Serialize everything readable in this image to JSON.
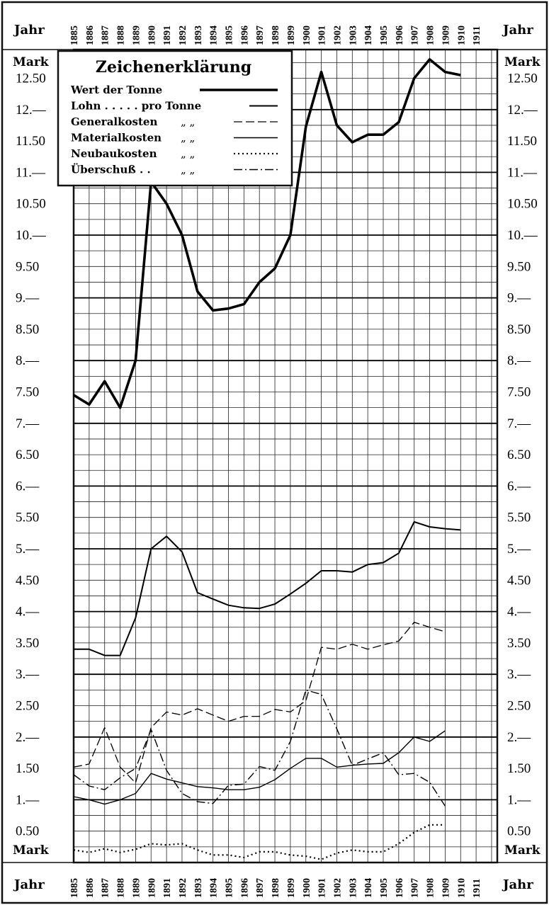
{
  "chart_data": {
    "type": "line",
    "title": "",
    "legend": {
      "title": "Zeichenerklärung",
      "placement": "top-left",
      "entries": [
        {
          "label": "Wert der Tonne",
          "unit": ""
        },
        {
          "label": "Lohn . . . . . pro Tonne",
          "unit": ""
        },
        {
          "label": "Generalkosten",
          "unit": "„     „"
        },
        {
          "label": "Materialkosten",
          "unit": "„     „"
        },
        {
          "label": "Neubaukosten",
          "unit": "„     „"
        },
        {
          "label": "Überschuß . .",
          "unit": "„     „"
        }
      ]
    },
    "x_label": "Jahr",
    "y_label": "Mark",
    "x": [
      1885,
      1886,
      1887,
      1888,
      1889,
      1890,
      1891,
      1892,
      1893,
      1894,
      1895,
      1896,
      1897,
      1898,
      1899,
      1900,
      1901,
      1902,
      1903,
      1904,
      1905,
      1906,
      1907,
      1908,
      1909,
      1910,
      1911
    ],
    "ylim": [
      0,
      13
    ],
    "y_ticks": [
      "0.50",
      "1.—",
      "1.50",
      "2.—",
      "2.50",
      "3.—",
      "3.50",
      "4.—",
      "4.50",
      "5.—",
      "5.50",
      "6.—",
      "6.50",
      "7.—",
      "7.50",
      "8.—",
      "8.50",
      "9.—",
      "9.50",
      "10.—",
      "10.50",
      "11.—",
      "11.50",
      "12.—",
      "12.50"
    ],
    "grid": true,
    "series": [
      {
        "name": "Wert der Tonne",
        "style": "thick-solid",
        "values": [
          7.45,
          7.3,
          7.67,
          7.25,
          8.0,
          10.85,
          10.5,
          10.0,
          9.1,
          8.8,
          8.83,
          8.9,
          9.25,
          9.47,
          10.0,
          11.73,
          12.6,
          11.75,
          11.48,
          11.6,
          11.6,
          11.8,
          12.5,
          12.8,
          12.6,
          12.55,
          null
        ]
      },
      {
        "name": "Lohn",
        "style": "solid",
        "values": [
          3.4,
          3.4,
          3.3,
          3.3,
          3.9,
          5.0,
          5.2,
          4.95,
          4.3,
          4.2,
          4.1,
          4.06,
          4.05,
          4.12,
          4.28,
          4.45,
          4.65,
          4.65,
          4.63,
          4.75,
          4.78,
          4.93,
          5.43,
          5.35,
          5.32,
          5.3,
          null
        ]
      },
      {
        "name": "Generalkosten",
        "style": "dashed",
        "values": [
          1.52,
          1.57,
          2.15,
          1.52,
          1.27,
          2.15,
          2.4,
          2.35,
          2.45,
          2.35,
          2.25,
          2.33,
          2.33,
          2.44,
          2.4,
          2.58,
          3.43,
          3.4,
          3.48,
          3.4,
          3.47,
          3.53,
          3.83,
          3.75,
          3.68,
          null,
          null
        ]
      },
      {
        "name": "Materialkosten",
        "style": "thin-solid",
        "values": [
          1.05,
          1.0,
          0.93,
          1.0,
          1.1,
          1.42,
          1.33,
          1.27,
          1.21,
          1.19,
          1.16,
          1.16,
          1.2,
          1.32,
          1.5,
          1.66,
          1.66,
          1.52,
          1.55,
          1.57,
          1.58,
          1.75,
          2.0,
          1.93,
          2.1,
          null,
          null
        ]
      },
      {
        "name": "Neubaukosten",
        "style": "dotted",
        "values": [
          0.2,
          0.16,
          0.22,
          0.16,
          0.21,
          0.3,
          0.28,
          0.3,
          0.2,
          0.12,
          0.12,
          0.08,
          0.17,
          0.17,
          0.12,
          0.1,
          0.05,
          0.15,
          0.2,
          0.17,
          0.17,
          0.3,
          0.48,
          0.6,
          0.6,
          null,
          null
        ]
      },
      {
        "name": "Überschuß",
        "style": "dash-dot",
        "values": [
          1.4,
          1.22,
          1.16,
          1.35,
          1.5,
          2.12,
          1.47,
          1.1,
          0.97,
          0.94,
          1.23,
          1.25,
          1.53,
          1.47,
          1.93,
          2.75,
          2.68,
          2.13,
          1.55,
          1.65,
          1.75,
          1.4,
          1.42,
          1.28,
          0.9,
          null,
          null
        ]
      }
    ]
  }
}
